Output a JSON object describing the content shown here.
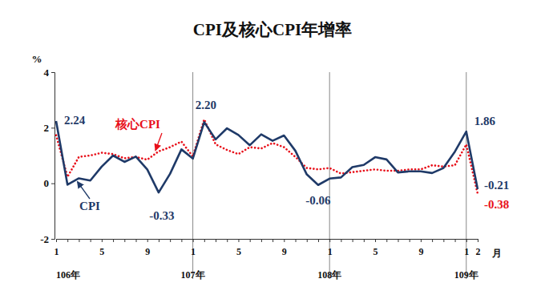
{
  "chart_data": {
    "type": "line",
    "title": "CPI及核心CPI年增率",
    "y_unit": "%",
    "x_unit": "月",
    "categories": [
      "1",
      null,
      null,
      null,
      "5",
      null,
      null,
      null,
      "9",
      null,
      null,
      null,
      "1",
      null,
      null,
      null,
      "5",
      null,
      null,
      null,
      "9",
      null,
      null,
      null,
      "1",
      null,
      null,
      null,
      "5",
      null,
      null,
      null,
      "9",
      null,
      null,
      null,
      "1",
      "2"
    ],
    "x_groups": [
      {
        "label": "106年",
        "start": 0
      },
      {
        "label": "107年",
        "start": 12
      },
      {
        "label": "108年",
        "start": 24
      },
      {
        "label": "109年",
        "start": 36
      }
    ],
    "series": [
      {
        "name": "CPI",
        "color": "#1f3a68",
        "line_style": "solid",
        "values": [
          2.24,
          -0.05,
          0.18,
          0.1,
          0.6,
          1.0,
          0.77,
          0.96,
          0.5,
          -0.33,
          0.34,
          1.22,
          0.89,
          2.2,
          1.58,
          1.98,
          1.74,
          1.37,
          1.76,
          1.53,
          1.72,
          1.17,
          0.32,
          -0.06,
          0.17,
          0.21,
          0.58,
          0.66,
          0.94,
          0.86,
          0.39,
          0.43,
          0.43,
          0.37,
          0.55,
          1.14,
          1.86,
          -0.21
        ]
      },
      {
        "name": "核心CPI",
        "color": "#e8101a",
        "line_style": "dotted",
        "values": [
          1.73,
          0.23,
          0.95,
          1.0,
          1.1,
          1.05,
          0.9,
          0.95,
          0.85,
          1.15,
          1.3,
          1.5,
          0.97,
          2.3,
          1.4,
          1.2,
          1.05,
          1.3,
          1.25,
          1.45,
          1.3,
          0.95,
          0.55,
          0.5,
          0.55,
          0.35,
          0.4,
          0.45,
          0.5,
          0.45,
          0.45,
          0.5,
          0.5,
          0.65,
          0.6,
          0.65,
          1.4,
          -0.38
        ]
      }
    ],
    "ylim": [
      -2,
      4
    ],
    "yticks": [
      -2,
      0,
      2,
      4
    ],
    "grid": false,
    "annotations": [
      {
        "label": "2.24",
        "series": 0,
        "index": 0
      },
      {
        "label": "2.20",
        "series": 0,
        "index": 13
      },
      {
        "label": "-0.33",
        "series": 0,
        "index": 9
      },
      {
        "label": "-0.06",
        "series": 0,
        "index": 23
      },
      {
        "label": "1.86",
        "series": 0,
        "index": 36
      },
      {
        "label": "-0.21",
        "series": 0,
        "index": 37
      },
      {
        "label": "-0.38",
        "series": 1,
        "index": 37
      }
    ]
  }
}
